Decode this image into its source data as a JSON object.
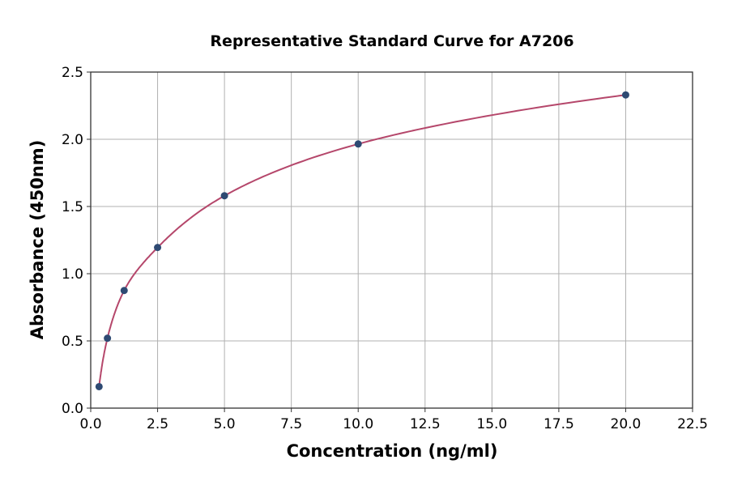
{
  "chart_data": {
    "type": "scatter",
    "title": "Representative Standard Curve for A7206",
    "xlabel": "Concentration (ng/ml)",
    "ylabel": "Absorbance (450nm)",
    "xlim": [
      0,
      22.5
    ],
    "ylim": [
      0,
      2.5
    ],
    "xticks": [
      "0.0",
      "2.5",
      "5.0",
      "7.5",
      "10.0",
      "12.5",
      "15.0",
      "17.5",
      "20.0",
      "22.5"
    ],
    "yticks": [
      "0.0",
      "0.5",
      "1.0",
      "1.5",
      "2.0",
      "2.5"
    ],
    "grid": true,
    "points": {
      "x": [
        0.3125,
        0.625,
        1.25,
        2.5,
        5,
        10,
        20
      ],
      "y": [
        0.16,
        0.52,
        0.875,
        1.195,
        1.58,
        1.965,
        2.33
      ]
    },
    "fit_curve": true,
    "colors": {
      "points": "#2e4a73",
      "curve": "#b5476b",
      "grid": "#b0b0b0"
    }
  }
}
